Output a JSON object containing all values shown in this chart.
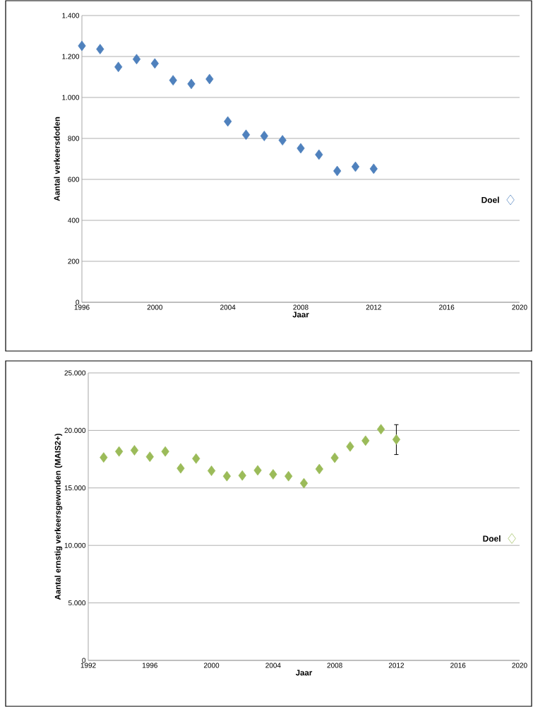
{
  "chart_data": [
    {
      "type": "scatter",
      "xlabel": "Jaar",
      "ylabel": "Aantal verkeersdoden",
      "marker": "diamond",
      "grid": "y",
      "xlim": [
        1996,
        2020
      ],
      "xticks": [
        1996,
        2000,
        2004,
        2008,
        2012,
        2016,
        2020
      ],
      "ylim": [
        0,
        1400
      ],
      "yticks": [
        0,
        200,
        400,
        600,
        800,
        {
          "value": 1000,
          "label": "1.000"
        },
        {
          "value": 1200,
          "label": "1.200"
        },
        {
          "value": 1400,
          "label": "1.400"
        }
      ],
      "series": [
        {
          "color": "#4f81bd",
          "x": [
            1996,
            1997,
            1998,
            1999,
            2000,
            2001,
            2002,
            2003,
            2004,
            2005,
            2006,
            2007,
            2008,
            2009,
            2010,
            2011,
            2012
          ],
          "values": [
            1252,
            1236,
            1149,
            1187,
            1166,
            1084,
            1066,
            1090,
            883,
            818,
            812,
            791,
            752,
            721,
            641,
            662,
            652
          ]
        },
        {
          "name": "Doel",
          "color": "#4f81bd",
          "x": [
            2019.5
          ],
          "values": [
            500
          ]
        }
      ]
    },
    {
      "type": "scatter",
      "xlabel": "Jaar",
      "ylabel": "Aantal ernstig verkeersgewonden (MAIS2+)",
      "marker": "diamond",
      "grid": "y",
      "xlim": [
        1992,
        2020
      ],
      "xticks": [
        1992,
        1996,
        2000,
        2004,
        2008,
        2012,
        2016,
        2020
      ],
      "ylim": [
        0,
        25000
      ],
      "yticks": [
        0,
        {
          "value": 5000,
          "label": "5.000"
        },
        {
          "value": 10000,
          "label": "10.000"
        },
        {
          "value": 15000,
          "label": "15.000"
        },
        {
          "value": 20000,
          "label": "20.000"
        },
        {
          "value": 25000,
          "label": "25.000"
        }
      ],
      "series": [
        {
          "color": "#9bbb59",
          "x": [
            1993,
            1994,
            1995,
            1996,
            1997,
            1998,
            1999,
            2000,
            2001,
            2002,
            2003,
            2004,
            2005,
            2006,
            2007,
            2008,
            2009,
            2010,
            2011,
            2012
          ],
          "values": [
            17650,
            18170,
            18270,
            17710,
            18170,
            16700,
            17550,
            16490,
            16020,
            16080,
            16530,
            16180,
            16020,
            15410,
            16640,
            17620,
            18600,
            19110,
            20100,
            19210
          ],
          "errors": [
            null,
            null,
            null,
            null,
            null,
            null,
            null,
            null,
            null,
            null,
            null,
            null,
            null,
            null,
            null,
            null,
            null,
            null,
            null,
            [
              17900,
              20500
            ]
          ]
        },
        {
          "name": "Doel",
          "color": "#9bbb59",
          "x": [
            2019.5
          ],
          "values": [
            10600
          ]
        }
      ]
    }
  ]
}
